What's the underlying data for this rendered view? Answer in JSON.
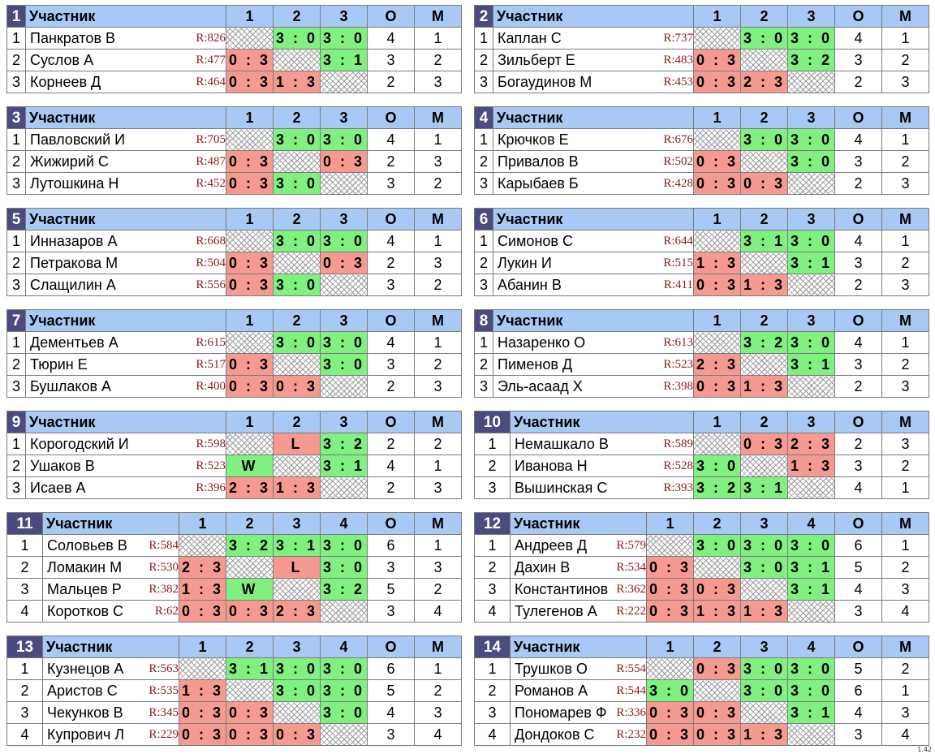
{
  "header_label": "Участник",
  "score_label": "О",
  "place_label": "М",
  "version": "1.42",
  "groups": [
    {
      "num": "1",
      "cols": [
        "1",
        "2",
        "3"
      ],
      "rows": [
        {
          "pos": "1",
          "name": "Панкратов В",
          "rating": "R:826",
          "cells": [
            "",
            "3 : 0",
            "3 : 0"
          ],
          "score": "4",
          "place": "1"
        },
        {
          "pos": "2",
          "name": "Суслов А",
          "rating": "R:477",
          "cells": [
            "0 : 3",
            "",
            "3 : 1"
          ],
          "score": "3",
          "place": "2"
        },
        {
          "pos": "3",
          "name": "Корнеев Д",
          "rating": "R:464",
          "cells": [
            "0 : 3",
            "1 : 3",
            ""
          ],
          "score": "2",
          "place": "3"
        }
      ]
    },
    {
      "num": "2",
      "cols": [
        "1",
        "2",
        "3"
      ],
      "rows": [
        {
          "pos": "1",
          "name": "Каплан С",
          "rating": "R:737",
          "cells": [
            "",
            "3 : 0",
            "3 : 0"
          ],
          "score": "4",
          "place": "1"
        },
        {
          "pos": "2",
          "name": "Зильберт Е",
          "rating": "R:483",
          "cells": [
            "0 : 3",
            "",
            "3 : 2"
          ],
          "score": "3",
          "place": "2"
        },
        {
          "pos": "3",
          "name": "Богаудинов М",
          "rating": "R:453",
          "cells": [
            "0 : 3",
            "2 : 3",
            ""
          ],
          "score": "2",
          "place": "3"
        }
      ]
    },
    {
      "num": "3",
      "cols": [
        "1",
        "2",
        "3"
      ],
      "rows": [
        {
          "pos": "1",
          "name": "Павловский И",
          "rating": "R:705",
          "cells": [
            "",
            "3 : 0",
            "3 : 0"
          ],
          "score": "4",
          "place": "1"
        },
        {
          "pos": "2",
          "name": "Жижирий С",
          "rating": "R:487",
          "cells": [
            "0 : 3",
            "",
            "0 : 3"
          ],
          "score": "2",
          "place": "3"
        },
        {
          "pos": "3",
          "name": "Лутошкина Н",
          "rating": "R:452",
          "cells": [
            "0 : 3",
            "3 : 0",
            ""
          ],
          "score": "3",
          "place": "2"
        }
      ]
    },
    {
      "num": "4",
      "cols": [
        "1",
        "2",
        "3"
      ],
      "rows": [
        {
          "pos": "1",
          "name": "Крючков Е",
          "rating": "R:676",
          "cells": [
            "",
            "3 : 0",
            "3 : 0"
          ],
          "score": "4",
          "place": "1"
        },
        {
          "pos": "2",
          "name": "Привалов В",
          "rating": "R:502",
          "cells": [
            "0 : 3",
            "",
            "3 : 0"
          ],
          "score": "3",
          "place": "2"
        },
        {
          "pos": "3",
          "name": "Карыбаев Б",
          "rating": "R:428",
          "cells": [
            "0 : 3",
            "0 : 3",
            ""
          ],
          "score": "2",
          "place": "3"
        }
      ]
    },
    {
      "num": "5",
      "cols": [
        "1",
        "2",
        "3"
      ],
      "rows": [
        {
          "pos": "1",
          "name": "Инназаров А",
          "rating": "R:668",
          "cells": [
            "",
            "3 : 0",
            "3 : 0"
          ],
          "score": "4",
          "place": "1"
        },
        {
          "pos": "2",
          "name": "Петракова М",
          "rating": "R:504",
          "cells": [
            "0 : 3",
            "",
            "0 : 3"
          ],
          "score": "2",
          "place": "3"
        },
        {
          "pos": "3",
          "name": "Слащилин А",
          "rating": "R:556",
          "cells": [
            "0 : 3",
            "3 : 0",
            ""
          ],
          "score": "3",
          "place": "2"
        }
      ]
    },
    {
      "num": "6",
      "cols": [
        "1",
        "2",
        "3"
      ],
      "rows": [
        {
          "pos": "1",
          "name": "Симонов С",
          "rating": "R:644",
          "cells": [
            "",
            "3 : 1",
            "3 : 0"
          ],
          "score": "4",
          "place": "1"
        },
        {
          "pos": "2",
          "name": "Лукин И",
          "rating": "R:515",
          "cells": [
            "1 : 3",
            "",
            "3 : 1"
          ],
          "score": "3",
          "place": "2"
        },
        {
          "pos": "3",
          "name": "Абанин В",
          "rating": "R:411",
          "cells": [
            "0 : 3",
            "1 : 3",
            ""
          ],
          "score": "2",
          "place": "3"
        }
      ]
    },
    {
      "num": "7",
      "cols": [
        "1",
        "2",
        "3"
      ],
      "rows": [
        {
          "pos": "1",
          "name": "Дементьев А",
          "rating": "R:615",
          "cells": [
            "",
            "3 : 0",
            "3 : 0"
          ],
          "score": "4",
          "place": "1"
        },
        {
          "pos": "2",
          "name": "Тюрин Е",
          "rating": "R:517",
          "cells": [
            "0 : 3",
            "",
            "3 : 0"
          ],
          "score": "3",
          "place": "2"
        },
        {
          "pos": "3",
          "name": "Бушлаков А",
          "rating": "R:400",
          "cells": [
            "0 : 3",
            "0 : 3",
            ""
          ],
          "score": "2",
          "place": "3"
        }
      ]
    },
    {
      "num": "8",
      "cols": [
        "1",
        "2",
        "3"
      ],
      "rows": [
        {
          "pos": "1",
          "name": "Назаренко О",
          "rating": "R:613",
          "cells": [
            "",
            "3 : 2",
            "3 : 0"
          ],
          "score": "4",
          "place": "1"
        },
        {
          "pos": "2",
          "name": "Пименов Д",
          "rating": "R:523",
          "cells": [
            "2 : 3",
            "",
            "3 : 1"
          ],
          "score": "3",
          "place": "2"
        },
        {
          "pos": "3",
          "name": "Эль-асаад Х",
          "rating": "R:398",
          "cells": [
            "0 : 3",
            "1 : 3",
            ""
          ],
          "score": "2",
          "place": "3"
        }
      ]
    },
    {
      "num": "9",
      "cols": [
        "1",
        "2",
        "3"
      ],
      "rows": [
        {
          "pos": "1",
          "name": "Корогодский И",
          "rating": "R:598",
          "cells": [
            "",
            "L",
            "3 : 2"
          ],
          "score": "2",
          "place": "2"
        },
        {
          "pos": "2",
          "name": "Ушаков В",
          "rating": "R:523",
          "cells": [
            "W",
            "",
            "3 : 1"
          ],
          "score": "4",
          "place": "1"
        },
        {
          "pos": "3",
          "name": "Исаев А",
          "rating": "R:396",
          "cells": [
            "2 : 3",
            "1 : 3",
            ""
          ],
          "score": "2",
          "place": "3"
        }
      ]
    },
    {
      "num": "10",
      "cols": [
        "1",
        "2",
        "3"
      ],
      "rows": [
        {
          "pos": "1",
          "name": "Немашкало В",
          "rating": "R:589",
          "cells": [
            "",
            "0 : 3",
            "2 : 3"
          ],
          "score": "2",
          "place": "3"
        },
        {
          "pos": "2",
          "name": "Иванова Н",
          "rating": "R:528",
          "cells": [
            "3 : 0",
            "",
            "1 : 3"
          ],
          "score": "3",
          "place": "2"
        },
        {
          "pos": "3",
          "name": "Вышинская С",
          "rating": "R:393",
          "cells": [
            "3 : 2",
            "3 : 1",
            ""
          ],
          "score": "4",
          "place": "1"
        }
      ]
    },
    {
      "num": "11",
      "cols": [
        "1",
        "2",
        "3",
        "4"
      ],
      "rows": [
        {
          "pos": "1",
          "name": "Соловьев В",
          "rating": "R:584",
          "cells": [
            "",
            "3 : 2",
            "3 : 1",
            "3 : 0"
          ],
          "score": "6",
          "place": "1"
        },
        {
          "pos": "2",
          "name": "Ломакин М",
          "rating": "R:530",
          "cells": [
            "2 : 3",
            "",
            "L",
            "3 : 0"
          ],
          "score": "3",
          "place": "3"
        },
        {
          "pos": "3",
          "name": "Мальцев Р",
          "rating": "R:382",
          "cells": [
            "1 : 3",
            "W",
            "",
            "3 : 2"
          ],
          "score": "5",
          "place": "2"
        },
        {
          "pos": "4",
          "name": "Коротков С",
          "rating": "R:62",
          "cells": [
            "0 : 3",
            "0 : 3",
            "2 : 3",
            ""
          ],
          "score": "3",
          "place": "4"
        }
      ]
    },
    {
      "num": "12",
      "cols": [
        "1",
        "2",
        "3",
        "4"
      ],
      "rows": [
        {
          "pos": "1",
          "name": "Андреев Д",
          "rating": "R:579",
          "cells": [
            "",
            "3 : 0",
            "3 : 0",
            "3 : 0"
          ],
          "score": "6",
          "place": "1"
        },
        {
          "pos": "2",
          "name": "Дахин В",
          "rating": "R:534",
          "cells": [
            "0 : 3",
            "",
            "3 : 0",
            "3 : 1"
          ],
          "score": "5",
          "place": "2"
        },
        {
          "pos": "3",
          "name": "Константинов",
          "rating": "R:362",
          "cells": [
            "0 : 3",
            "0 : 3",
            "",
            "3 : 1"
          ],
          "score": "4",
          "place": "3"
        },
        {
          "pos": "4",
          "name": "Тулегенов А",
          "rating": "R:222",
          "cells": [
            "0 : 3",
            "1 : 3",
            "1 : 3",
            ""
          ],
          "score": "3",
          "place": "4"
        }
      ]
    },
    {
      "num": "13",
      "cols": [
        "1",
        "2",
        "3",
        "4"
      ],
      "rows": [
        {
          "pos": "1",
          "name": "Кузнецов А",
          "rating": "R:563",
          "cells": [
            "",
            "3 : 1",
            "3 : 0",
            "3 : 0"
          ],
          "score": "6",
          "place": "1"
        },
        {
          "pos": "2",
          "name": "Аристов С",
          "rating": "R:535",
          "cells": [
            "1 : 3",
            "",
            "3 : 0",
            "3 : 0"
          ],
          "score": "5",
          "place": "2"
        },
        {
          "pos": "3",
          "name": "Чекунков В",
          "rating": "R:345",
          "cells": [
            "0 : 3",
            "0 : 3",
            "",
            "3 : 0"
          ],
          "score": "4",
          "place": "3"
        },
        {
          "pos": "4",
          "name": "Купрович Л",
          "rating": "R:229",
          "cells": [
            "0 : 3",
            "0 : 3",
            "0 : 3",
            ""
          ],
          "score": "3",
          "place": "4"
        }
      ]
    },
    {
      "num": "14",
      "cols": [
        "1",
        "2",
        "3",
        "4"
      ],
      "rows": [
        {
          "pos": "1",
          "name": "Трушков О",
          "rating": "R:554",
          "cells": [
            "",
            "0 : 3",
            "3 : 0",
            "3 : 0"
          ],
          "score": "5",
          "place": "2"
        },
        {
          "pos": "2",
          "name": "Романов А",
          "rating": "R:544",
          "cells": [
            "3 : 0",
            "",
            "3 : 0",
            "3 : 0"
          ],
          "score": "6",
          "place": "1"
        },
        {
          "pos": "3",
          "name": "Пономарев Ф",
          "rating": "R:336",
          "cells": [
            "0 : 3",
            "0 : 3",
            "",
            "3 : 1"
          ],
          "score": "4",
          "place": "3"
        },
        {
          "pos": "4",
          "name": "Дондоков С",
          "rating": "R:232",
          "cells": [
            "0 : 3",
            "0 : 3",
            "1 : 3",
            ""
          ],
          "score": "3",
          "place": "4"
        }
      ]
    }
  ]
}
